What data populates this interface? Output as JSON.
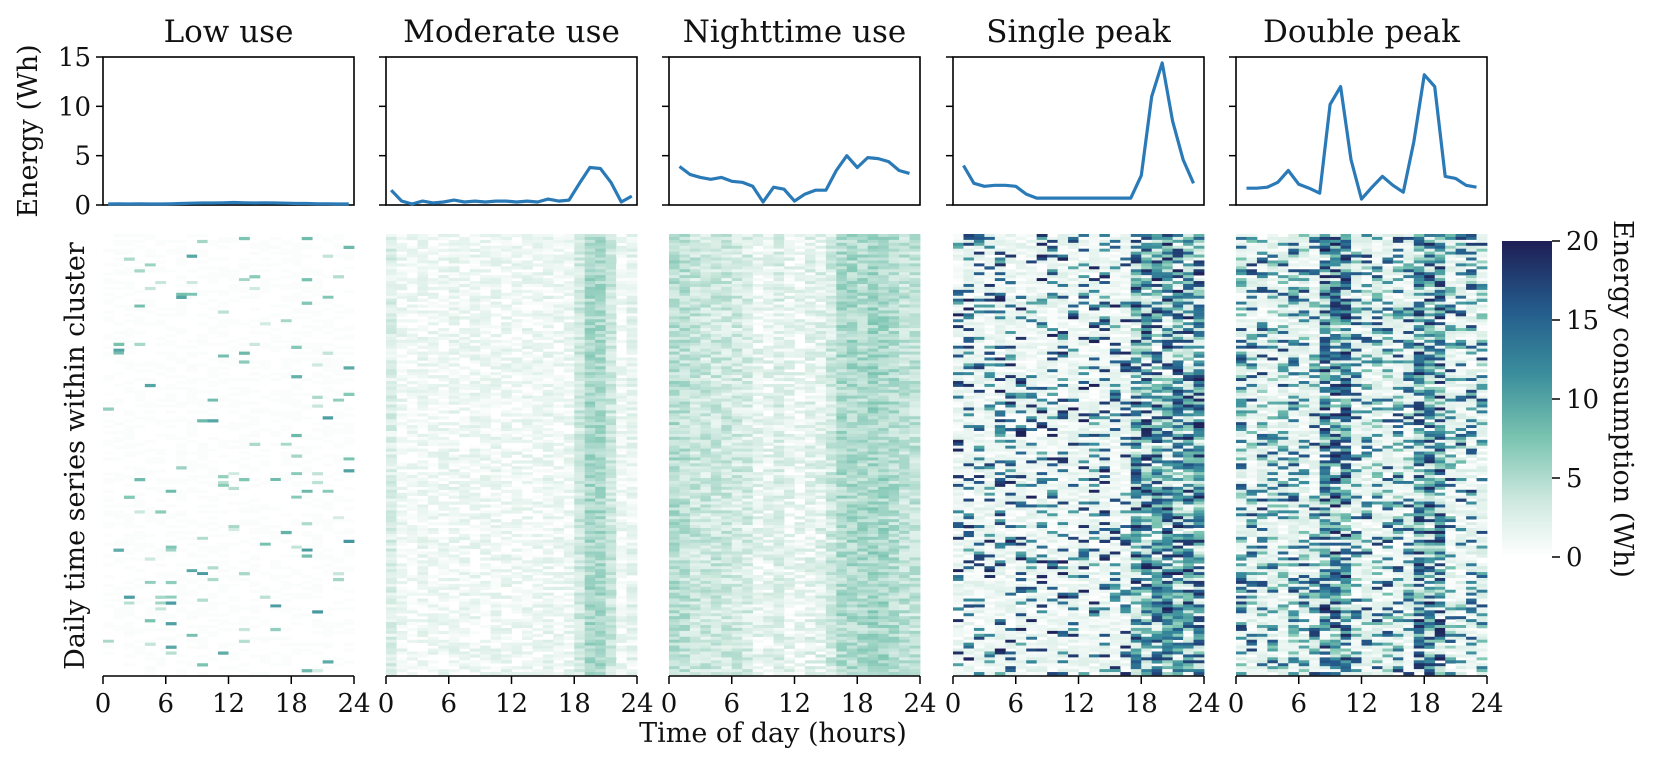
{
  "figure": {
    "ylabel_top": "Energy (Wh)",
    "ylabel_bottom": "Daily time series within cluster",
    "xlabel": "Time of day (hours)",
    "colorbar_label": "Energy consumption (Wh)",
    "colorbar_ticks": [
      "0",
      "5",
      "10",
      "15",
      "20"
    ],
    "colorbar_range": [
      0,
      20
    ],
    "colormap": [
      "#ffffff",
      "#cde8de",
      "#79c3b0",
      "#3a8e9c",
      "#245c8c",
      "#1e1e55"
    ],
    "line_color": "#2a7ab8",
    "x_ticks": [
      "0",
      "6",
      "12",
      "18",
      "24"
    ],
    "y_ticks_top": [
      "0",
      "5",
      "10",
      "15"
    ]
  },
  "chart_data": [
    {
      "type": "line",
      "title": "Low use",
      "xlim": [
        0,
        24
      ],
      "ylim": [
        0,
        15
      ],
      "x": [
        0.5,
        1.5,
        2.5,
        3.5,
        4.5,
        5.5,
        6.5,
        7.5,
        8.5,
        9.5,
        10.5,
        11.5,
        12.5,
        13.5,
        14.5,
        15.5,
        16.5,
        17.5,
        18.5,
        19.5,
        20.5,
        21.5,
        22.5,
        23.5
      ],
      "values": [
        0.1,
        0.12,
        0.1,
        0.12,
        0.1,
        0.1,
        0.12,
        0.15,
        0.18,
        0.2,
        0.2,
        0.22,
        0.25,
        0.22,
        0.2,
        0.22,
        0.2,
        0.18,
        0.15,
        0.15,
        0.12,
        0.12,
        0.1,
        0.1
      ],
      "heatmap_profile": "low"
    },
    {
      "type": "line",
      "title": "Moderate use",
      "xlim": [
        0,
        24
      ],
      "ylim": [
        0,
        15
      ],
      "x": [
        0.5,
        1.5,
        2.5,
        3.5,
        4.5,
        5.5,
        6.5,
        7.5,
        8.5,
        9.5,
        10.5,
        11.5,
        12.5,
        13.5,
        14.5,
        15.5,
        16.5,
        17.5,
        18.5,
        19.5,
        20.5,
        21.5,
        22.5,
        23.5
      ],
      "values": [
        1.5,
        0.4,
        0.1,
        0.4,
        0.2,
        0.3,
        0.5,
        0.3,
        0.4,
        0.3,
        0.4,
        0.4,
        0.3,
        0.4,
        0.3,
        0.6,
        0.4,
        0.5,
        2.2,
        3.8,
        3.7,
        2.3,
        0.3,
        0.9
      ],
      "heatmap_profile": "moderate"
    },
    {
      "type": "line",
      "title": "Nighttime use",
      "xlim": [
        0,
        24
      ],
      "ylim": [
        0,
        15
      ],
      "x": [
        1,
        2,
        3,
        4,
        5,
        6,
        7,
        8,
        9,
        10,
        11,
        12,
        13,
        14,
        15,
        16,
        17,
        18,
        19,
        20,
        21,
        22,
        23
      ],
      "values": [
        3.9,
        3.1,
        2.8,
        2.6,
        2.8,
        2.4,
        2.3,
        1.9,
        0.3,
        1.8,
        1.6,
        0.4,
        1.1,
        1.5,
        1.5,
        3.5,
        5.0,
        3.8,
        4.8,
        4.7,
        4.4,
        3.5,
        3.2
      ],
      "heatmap_profile": "night"
    },
    {
      "type": "line",
      "title": "Single peak",
      "xlim": [
        0,
        24
      ],
      "ylim": [
        0,
        15
      ],
      "x": [
        1,
        2,
        3,
        4,
        5,
        6,
        7,
        8,
        9,
        10,
        11,
        12,
        13,
        14,
        15,
        16,
        17,
        18,
        19,
        20,
        21,
        22,
        23
      ],
      "values": [
        4.0,
        2.2,
        1.9,
        2.0,
        2.0,
        1.9,
        1.1,
        0.7,
        0.7,
        0.7,
        0.7,
        0.7,
        0.7,
        0.7,
        0.7,
        0.7,
        0.7,
        3.0,
        11.0,
        14.4,
        8.5,
        4.6,
        2.2
      ],
      "heatmap_profile": "single"
    },
    {
      "type": "line",
      "title": "Double peak",
      "xlim": [
        0,
        24
      ],
      "ylim": [
        0,
        15
      ],
      "x": [
        1,
        2,
        3,
        4,
        5,
        6,
        7,
        8,
        9,
        10,
        11,
        12,
        13,
        14,
        15,
        16,
        17,
        18,
        19,
        20,
        21,
        22,
        23
      ],
      "values": [
        1.7,
        1.7,
        1.8,
        2.3,
        3.5,
        2.1,
        1.7,
        1.2,
        10.2,
        12.0,
        4.6,
        0.6,
        1.8,
        2.9,
        2.0,
        1.3,
        6.4,
        13.2,
        12.0,
        2.9,
        2.7,
        2.0,
        1.8
      ],
      "heatmap_profile": "double"
    }
  ]
}
